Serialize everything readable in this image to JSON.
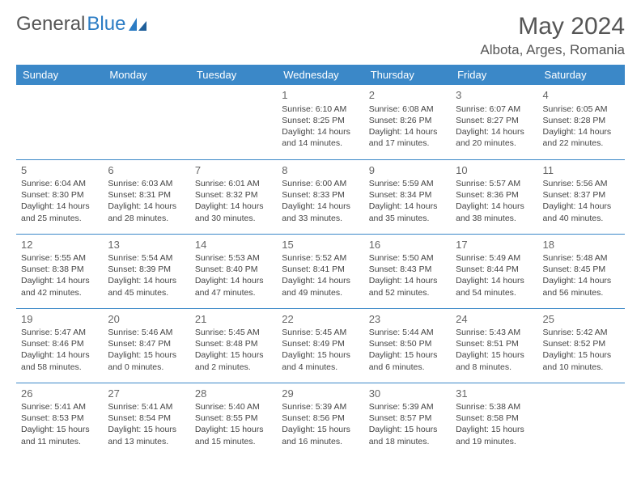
{
  "logo": {
    "text1": "General",
    "text2": "Blue"
  },
  "title": "May 2024",
  "location": "Albota, Arges, Romania",
  "colors": {
    "header_bg": "#3b88c8",
    "header_text": "#ffffff",
    "brand_blue": "#2b7cc4",
    "text": "#444444",
    "title_color": "#555555",
    "border": "#3b88c8",
    "background": "#ffffff"
  },
  "fonts": {
    "family": "Arial",
    "month_title_size": 30,
    "location_size": 17,
    "weekday_size": 13,
    "daynum_size": 13,
    "cell_size": 10.5
  },
  "weekdays": [
    "Sunday",
    "Monday",
    "Tuesday",
    "Wednesday",
    "Thursday",
    "Friday",
    "Saturday"
  ],
  "weeks": [
    [
      null,
      null,
      null,
      {
        "n": "1",
        "sr": "Sunrise: 6:10 AM",
        "ss": "Sunset: 8:25 PM",
        "d1": "Daylight: 14 hours",
        "d2": "and 14 minutes."
      },
      {
        "n": "2",
        "sr": "Sunrise: 6:08 AM",
        "ss": "Sunset: 8:26 PM",
        "d1": "Daylight: 14 hours",
        "d2": "and 17 minutes."
      },
      {
        "n": "3",
        "sr": "Sunrise: 6:07 AM",
        "ss": "Sunset: 8:27 PM",
        "d1": "Daylight: 14 hours",
        "d2": "and 20 minutes."
      },
      {
        "n": "4",
        "sr": "Sunrise: 6:05 AM",
        "ss": "Sunset: 8:28 PM",
        "d1": "Daylight: 14 hours",
        "d2": "and 22 minutes."
      }
    ],
    [
      {
        "n": "5",
        "sr": "Sunrise: 6:04 AM",
        "ss": "Sunset: 8:30 PM",
        "d1": "Daylight: 14 hours",
        "d2": "and 25 minutes."
      },
      {
        "n": "6",
        "sr": "Sunrise: 6:03 AM",
        "ss": "Sunset: 8:31 PM",
        "d1": "Daylight: 14 hours",
        "d2": "and 28 minutes."
      },
      {
        "n": "7",
        "sr": "Sunrise: 6:01 AM",
        "ss": "Sunset: 8:32 PM",
        "d1": "Daylight: 14 hours",
        "d2": "and 30 minutes."
      },
      {
        "n": "8",
        "sr": "Sunrise: 6:00 AM",
        "ss": "Sunset: 8:33 PM",
        "d1": "Daylight: 14 hours",
        "d2": "and 33 minutes."
      },
      {
        "n": "9",
        "sr": "Sunrise: 5:59 AM",
        "ss": "Sunset: 8:34 PM",
        "d1": "Daylight: 14 hours",
        "d2": "and 35 minutes."
      },
      {
        "n": "10",
        "sr": "Sunrise: 5:57 AM",
        "ss": "Sunset: 8:36 PM",
        "d1": "Daylight: 14 hours",
        "d2": "and 38 minutes."
      },
      {
        "n": "11",
        "sr": "Sunrise: 5:56 AM",
        "ss": "Sunset: 8:37 PM",
        "d1": "Daylight: 14 hours",
        "d2": "and 40 minutes."
      }
    ],
    [
      {
        "n": "12",
        "sr": "Sunrise: 5:55 AM",
        "ss": "Sunset: 8:38 PM",
        "d1": "Daylight: 14 hours",
        "d2": "and 42 minutes."
      },
      {
        "n": "13",
        "sr": "Sunrise: 5:54 AM",
        "ss": "Sunset: 8:39 PM",
        "d1": "Daylight: 14 hours",
        "d2": "and 45 minutes."
      },
      {
        "n": "14",
        "sr": "Sunrise: 5:53 AM",
        "ss": "Sunset: 8:40 PM",
        "d1": "Daylight: 14 hours",
        "d2": "and 47 minutes."
      },
      {
        "n": "15",
        "sr": "Sunrise: 5:52 AM",
        "ss": "Sunset: 8:41 PM",
        "d1": "Daylight: 14 hours",
        "d2": "and 49 minutes."
      },
      {
        "n": "16",
        "sr": "Sunrise: 5:50 AM",
        "ss": "Sunset: 8:43 PM",
        "d1": "Daylight: 14 hours",
        "d2": "and 52 minutes."
      },
      {
        "n": "17",
        "sr": "Sunrise: 5:49 AM",
        "ss": "Sunset: 8:44 PM",
        "d1": "Daylight: 14 hours",
        "d2": "and 54 minutes."
      },
      {
        "n": "18",
        "sr": "Sunrise: 5:48 AM",
        "ss": "Sunset: 8:45 PM",
        "d1": "Daylight: 14 hours",
        "d2": "and 56 minutes."
      }
    ],
    [
      {
        "n": "19",
        "sr": "Sunrise: 5:47 AM",
        "ss": "Sunset: 8:46 PM",
        "d1": "Daylight: 14 hours",
        "d2": "and 58 minutes."
      },
      {
        "n": "20",
        "sr": "Sunrise: 5:46 AM",
        "ss": "Sunset: 8:47 PM",
        "d1": "Daylight: 15 hours",
        "d2": "and 0 minutes."
      },
      {
        "n": "21",
        "sr": "Sunrise: 5:45 AM",
        "ss": "Sunset: 8:48 PM",
        "d1": "Daylight: 15 hours",
        "d2": "and 2 minutes."
      },
      {
        "n": "22",
        "sr": "Sunrise: 5:45 AM",
        "ss": "Sunset: 8:49 PM",
        "d1": "Daylight: 15 hours",
        "d2": "and 4 minutes."
      },
      {
        "n": "23",
        "sr": "Sunrise: 5:44 AM",
        "ss": "Sunset: 8:50 PM",
        "d1": "Daylight: 15 hours",
        "d2": "and 6 minutes."
      },
      {
        "n": "24",
        "sr": "Sunrise: 5:43 AM",
        "ss": "Sunset: 8:51 PM",
        "d1": "Daylight: 15 hours",
        "d2": "and 8 minutes."
      },
      {
        "n": "25",
        "sr": "Sunrise: 5:42 AM",
        "ss": "Sunset: 8:52 PM",
        "d1": "Daylight: 15 hours",
        "d2": "and 10 minutes."
      }
    ],
    [
      {
        "n": "26",
        "sr": "Sunrise: 5:41 AM",
        "ss": "Sunset: 8:53 PM",
        "d1": "Daylight: 15 hours",
        "d2": "and 11 minutes."
      },
      {
        "n": "27",
        "sr": "Sunrise: 5:41 AM",
        "ss": "Sunset: 8:54 PM",
        "d1": "Daylight: 15 hours",
        "d2": "and 13 minutes."
      },
      {
        "n": "28",
        "sr": "Sunrise: 5:40 AM",
        "ss": "Sunset: 8:55 PM",
        "d1": "Daylight: 15 hours",
        "d2": "and 15 minutes."
      },
      {
        "n": "29",
        "sr": "Sunrise: 5:39 AM",
        "ss": "Sunset: 8:56 PM",
        "d1": "Daylight: 15 hours",
        "d2": "and 16 minutes."
      },
      {
        "n": "30",
        "sr": "Sunrise: 5:39 AM",
        "ss": "Sunset: 8:57 PM",
        "d1": "Daylight: 15 hours",
        "d2": "and 18 minutes."
      },
      {
        "n": "31",
        "sr": "Sunrise: 5:38 AM",
        "ss": "Sunset: 8:58 PM",
        "d1": "Daylight: 15 hours",
        "d2": "and 19 minutes."
      },
      null
    ]
  ]
}
